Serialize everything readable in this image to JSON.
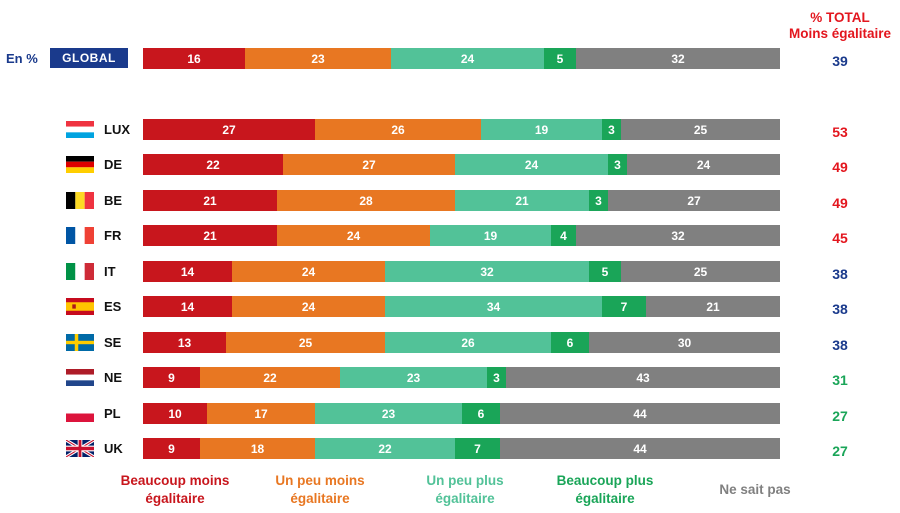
{
  "header": {
    "left_label": "En %",
    "global_badge": "GLOBAL",
    "total_title_line1": "% TOTAL",
    "total_title_line2": "Moins égalitaire"
  },
  "colors": {
    "beaucoup_moins": "#c8161d",
    "peu_moins": "#e87722",
    "peu_plus": "#52c298",
    "beaucoup_plus": "#1aa558",
    "ne_sait_pas": "#808080",
    "total_red": "#e3161e",
    "total_blue": "#1a3a8c",
    "total_green": "#1aa558",
    "global_badge_bg": "#1a3a8c"
  },
  "chart_data": {
    "type": "bar",
    "orientation": "horizontal-stacked",
    "series_names": [
      "Beaucoup moins égalitaire",
      "Un peu moins égalitaire",
      "Un peu plus égalitaire",
      "Beaucoup plus égalitaire",
      "Ne sait pas"
    ],
    "rows": [
      {
        "label": "GLOBAL",
        "values": [
          16,
          23,
          24,
          5,
          32
        ],
        "total": "39",
        "total_color": "blue"
      },
      {
        "label": "LUX",
        "values": [
          27,
          26,
          19,
          3,
          25
        ],
        "total": "53",
        "total_color": "red"
      },
      {
        "label": "DE",
        "values": [
          22,
          27,
          24,
          3,
          24
        ],
        "total": "49",
        "total_color": "red"
      },
      {
        "label": "BE",
        "values": [
          21,
          28,
          21,
          3,
          27
        ],
        "total": "49",
        "total_color": "red"
      },
      {
        "label": "FR",
        "values": [
          21,
          24,
          19,
          4,
          32
        ],
        "total": "45",
        "total_color": "red"
      },
      {
        "label": "IT",
        "values": [
          14,
          24,
          32,
          5,
          25
        ],
        "total": "38",
        "total_color": "blue"
      },
      {
        "label": "ES",
        "values": [
          14,
          24,
          34,
          7,
          21
        ],
        "total": "38",
        "total_color": "blue"
      },
      {
        "label": "SE",
        "values": [
          13,
          25,
          26,
          6,
          30
        ],
        "total": "38",
        "total_color": "blue"
      },
      {
        "label": "NE",
        "values": [
          9,
          22,
          23,
          3,
          43
        ],
        "total": "31",
        "total_color": "green"
      },
      {
        "label": "PL",
        "values": [
          10,
          17,
          23,
          6,
          44
        ],
        "total": "27",
        "total_color": "green"
      },
      {
        "label": "UK",
        "values": [
          9,
          18,
          22,
          7,
          44
        ],
        "total": "27",
        "total_color": "green"
      }
    ]
  },
  "legend": [
    {
      "line1": "Beaucoup moins",
      "line2": "égalitaire",
      "color": "#c8161d"
    },
    {
      "line1": "Un peu moins",
      "line2": "égalitaire",
      "color": "#e87722"
    },
    {
      "line1": "Un peu plus",
      "line2": "égalitaire",
      "color": "#52c298"
    },
    {
      "line1": "Beaucoup plus",
      "line2": "égalitaire",
      "color": "#1aa558"
    },
    {
      "line1": "Ne sait pas",
      "line2": "",
      "color": "#808080"
    }
  ]
}
